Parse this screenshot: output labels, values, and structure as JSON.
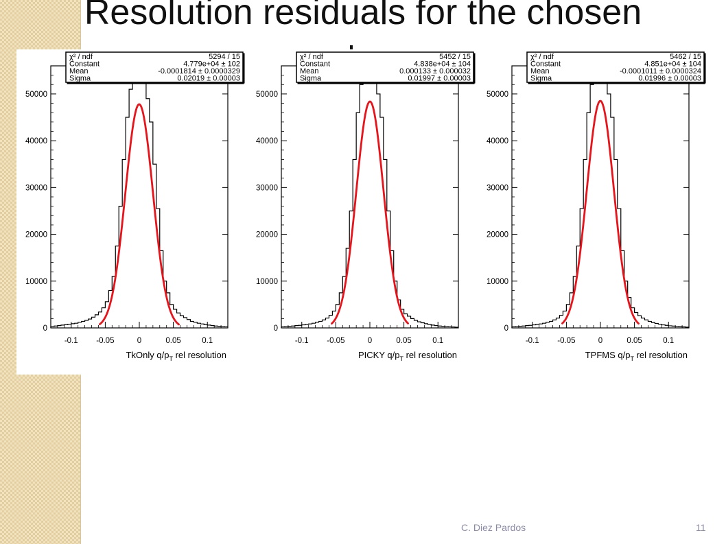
{
  "slide": {
    "title": "Resolution residuals for the chosen",
    "footer_author": "C. Diez Pardos",
    "page_number": "11"
  },
  "colors": {
    "histogram": "#000000",
    "fit": "#e8141b",
    "side_band": "#f2e3c0"
  },
  "chart_data": [
    {
      "type": "bar",
      "title": "",
      "xlabel": "TkOnly  q/p",
      "xlabel_sub": "T",
      "xlabel_tail": " rel resolution",
      "ylabel": "",
      "xlim": [
        -0.13,
        0.13
      ],
      "ylim": [
        0,
        56000
      ],
      "xticks": [
        "-0.1",
        "-0.05",
        "0",
        "0.05",
        "0.1"
      ],
      "xtick_values": [
        -0.1,
        -0.05,
        0,
        0.05,
        0.1
      ],
      "yticks": [
        "0",
        "10000",
        "20000",
        "30000",
        "40000",
        "50000"
      ],
      "ytick_values": [
        0,
        10000,
        20000,
        30000,
        40000,
        50000
      ],
      "bin_width": 0.005,
      "bin_centers": [
        -0.1275,
        -0.1225,
        -0.1175,
        -0.1125,
        -0.1075,
        -0.1025,
        -0.0975,
        -0.0925,
        -0.0875,
        -0.0825,
        -0.0775,
        -0.0725,
        -0.0675,
        -0.0625,
        -0.0575,
        -0.0525,
        -0.0475,
        -0.0425,
        -0.0375,
        -0.0325,
        -0.0275,
        -0.0225,
        -0.0175,
        -0.0125,
        -0.0075,
        -0.0025,
        0.0025,
        0.0075,
        0.0125,
        0.0175,
        0.0225,
        0.0275,
        0.0325,
        0.0375,
        0.0425,
        0.0475,
        0.0525,
        0.0575,
        0.0625,
        0.0675,
        0.0725,
        0.0775,
        0.0825,
        0.0875,
        0.0925,
        0.0975,
        0.1025,
        0.1075,
        0.1125,
        0.1175,
        0.1225,
        0.1275
      ],
      "counts": [
        300,
        400,
        500,
        600,
        700,
        800,
        900,
        1000,
        1200,
        1400,
        1600,
        1900,
        2300,
        2800,
        3400,
        4300,
        5600,
        8000,
        11000,
        17500,
        26000,
        36000,
        45000,
        51000,
        54000,
        58000,
        58000,
        54000,
        49000,
        44000,
        35000,
        25500,
        16500,
        10000,
        7500,
        5000,
        4000,
        3200,
        2600,
        2200,
        1800,
        1400,
        1200,
        1000,
        850,
        700,
        600,
        500,
        400,
        350,
        300,
        250
      ],
      "fit": {
        "function": "gaus",
        "constant": 47790,
        "mean": -0.0001814,
        "sigma": 0.02019,
        "range": [
          -0.058,
          0.058
        ]
      },
      "stats": {
        "chi2_ndf_label": "χ² / ndf",
        "chi2_ndf": "5294 / 15",
        "constant_label": "Constant",
        "constant": "4.779e+04 ± 102",
        "mean_label": "Mean",
        "mean": "-0.0001814 ± 0.0000329",
        "sigma_label": "Sigma",
        "sigma": "0.02019 ± 0.00003"
      }
    },
    {
      "type": "bar",
      "title": "",
      "xlabel": "PICKY q/p",
      "xlabel_sub": "T",
      "xlabel_tail": " rel resolution",
      "ylabel": "",
      "xlim": [
        -0.13,
        0.13
      ],
      "ylim": [
        0,
        56000
      ],
      "xticks": [
        "-0.1",
        "-0.05",
        "0",
        "0.05",
        "0.1"
      ],
      "xtick_values": [
        -0.1,
        -0.05,
        0,
        0.05,
        0.1
      ],
      "yticks": [
        "0",
        "10000",
        "20000",
        "30000",
        "40000",
        "50000"
      ],
      "ytick_values": [
        0,
        10000,
        20000,
        30000,
        40000,
        50000
      ],
      "bin_width": 0.005,
      "bin_centers": [
        -0.1275,
        -0.1225,
        -0.1175,
        -0.1125,
        -0.1075,
        -0.1025,
        -0.0975,
        -0.0925,
        -0.0875,
        -0.0825,
        -0.0775,
        -0.0725,
        -0.0675,
        -0.0625,
        -0.0575,
        -0.0525,
        -0.0475,
        -0.0425,
        -0.0375,
        -0.0325,
        -0.0275,
        -0.0225,
        -0.0175,
        -0.0125,
        -0.0075,
        -0.0025,
        0.0025,
        0.0075,
        0.0125,
        0.0175,
        0.0225,
        0.0275,
        0.0325,
        0.0375,
        0.0425,
        0.0475,
        0.0525,
        0.0575,
        0.0625,
        0.0675,
        0.0725,
        0.0775,
        0.0825,
        0.0875,
        0.0925,
        0.0975,
        0.1025,
        0.1075,
        0.1125,
        0.1175,
        0.1225,
        0.1275
      ],
      "counts": [
        250,
        300,
        350,
        400,
        500,
        550,
        650,
        750,
        850,
        1000,
        1200,
        1400,
        1700,
        2100,
        2700,
        3600,
        5000,
        7500,
        11000,
        17000,
        25000,
        36000,
        46000,
        52000,
        54000,
        58000,
        58000,
        54000,
        50000,
        45000,
        36000,
        25000,
        16500,
        10000,
        6000,
        4000,
        3000,
        2500,
        2000,
        1600,
        1300,
        1100,
        900,
        750,
        600,
        500,
        400,
        350,
        300,
        250,
        200,
        150
      ],
      "fit": {
        "function": "gaus",
        "constant": 48380,
        "mean": 0.000133,
        "sigma": 0.01997,
        "range": [
          -0.056,
          0.056
        ]
      },
      "stats": {
        "chi2_ndf_label": "χ² / ndf",
        "chi2_ndf": "5452 / 15",
        "constant_label": "Constant",
        "constant": "4.838e+04 ± 104",
        "mean_label": "Mean",
        "mean": "0.000133 ± 0.000032",
        "sigma_label": "Sigma",
        "sigma": "0.01997 ± 0.00003"
      }
    },
    {
      "type": "bar",
      "title": "",
      "xlabel": "TPFMS q/p",
      "xlabel_sub": "T",
      "xlabel_tail": " rel resolution",
      "ylabel": "",
      "xlim": [
        -0.13,
        0.13
      ],
      "ylim": [
        0,
        56000
      ],
      "xticks": [
        "-0.1",
        "-0.05",
        "0",
        "0.05",
        "0.1"
      ],
      "xtick_values": [
        -0.1,
        -0.05,
        0,
        0.05,
        0.1
      ],
      "yticks": [
        "0",
        "10000",
        "20000",
        "30000",
        "40000",
        "50000"
      ],
      "ytick_values": [
        0,
        10000,
        20000,
        30000,
        40000,
        50000
      ],
      "bin_width": 0.005,
      "bin_centers": [
        -0.1275,
        -0.1225,
        -0.1175,
        -0.1125,
        -0.1075,
        -0.1025,
        -0.0975,
        -0.0925,
        -0.0875,
        -0.0825,
        -0.0775,
        -0.0725,
        -0.0675,
        -0.0625,
        -0.0575,
        -0.0525,
        -0.0475,
        -0.0425,
        -0.0375,
        -0.0325,
        -0.0275,
        -0.0225,
        -0.0175,
        -0.0125,
        -0.0075,
        -0.0025,
        0.0025,
        0.0075,
        0.0125,
        0.0175,
        0.0225,
        0.0275,
        0.0325,
        0.0375,
        0.0425,
        0.0475,
        0.0525,
        0.0575,
        0.0625,
        0.0675,
        0.0725,
        0.0775,
        0.0825,
        0.0875,
        0.0925,
        0.0975,
        0.1025,
        0.1075,
        0.1125,
        0.1175,
        0.1225,
        0.1275
      ],
      "counts": [
        250,
        300,
        350,
        400,
        500,
        550,
        650,
        750,
        850,
        1000,
        1200,
        1400,
        1700,
        2100,
        2700,
        3600,
        5000,
        7500,
        11000,
        17500,
        25500,
        36000,
        46000,
        52000,
        55000,
        58000,
        58000,
        55000,
        50000,
        45000,
        36000,
        25500,
        16500,
        10000,
        6500,
        4300,
        3300,
        2600,
        2100,
        1700,
        1400,
        1150,
        950,
        800,
        650,
        550,
        450,
        380,
        320,
        270,
        220,
        170
      ],
      "fit": {
        "function": "gaus",
        "constant": 48510,
        "mean": -0.0001011,
        "sigma": 0.01996,
        "range": [
          -0.056,
          0.056
        ]
      },
      "stats": {
        "chi2_ndf_label": "χ² / ndf",
        "chi2_ndf": "5462 / 15",
        "constant_label": "Constant",
        "constant": "4.851e+04 ± 104",
        "mean_label": "Mean",
        "mean": "-0.0001011 ± 0.0000324",
        "sigma_label": "Sigma",
        "sigma": "0.01996 ± 0.00003"
      }
    }
  ]
}
